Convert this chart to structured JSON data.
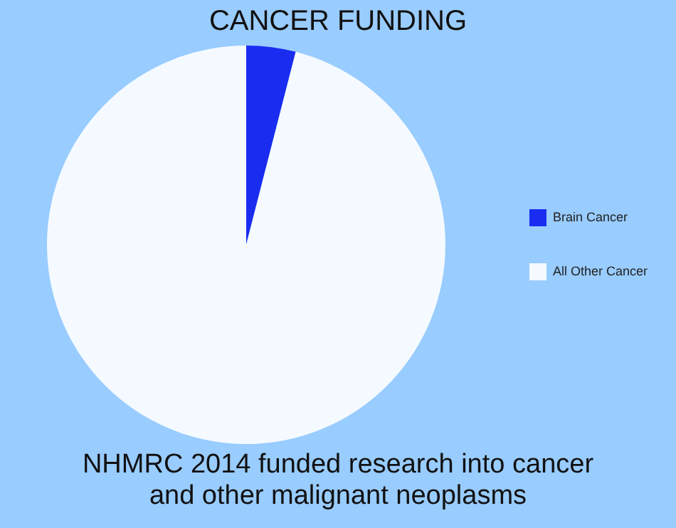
{
  "chart_data": {
    "type": "pie",
    "title": "CANCER FUNDING",
    "categories": [
      "Brain Cancer",
      "All Other Cancer"
    ],
    "values": [
      4,
      96
    ],
    "colors": [
      "#1a2cf0",
      "#f4faff"
    ],
    "legend": "right",
    "annotations": [
      "NHMRC 2014 funded research into cancer and other malignant neoplasms"
    ]
  }
}
